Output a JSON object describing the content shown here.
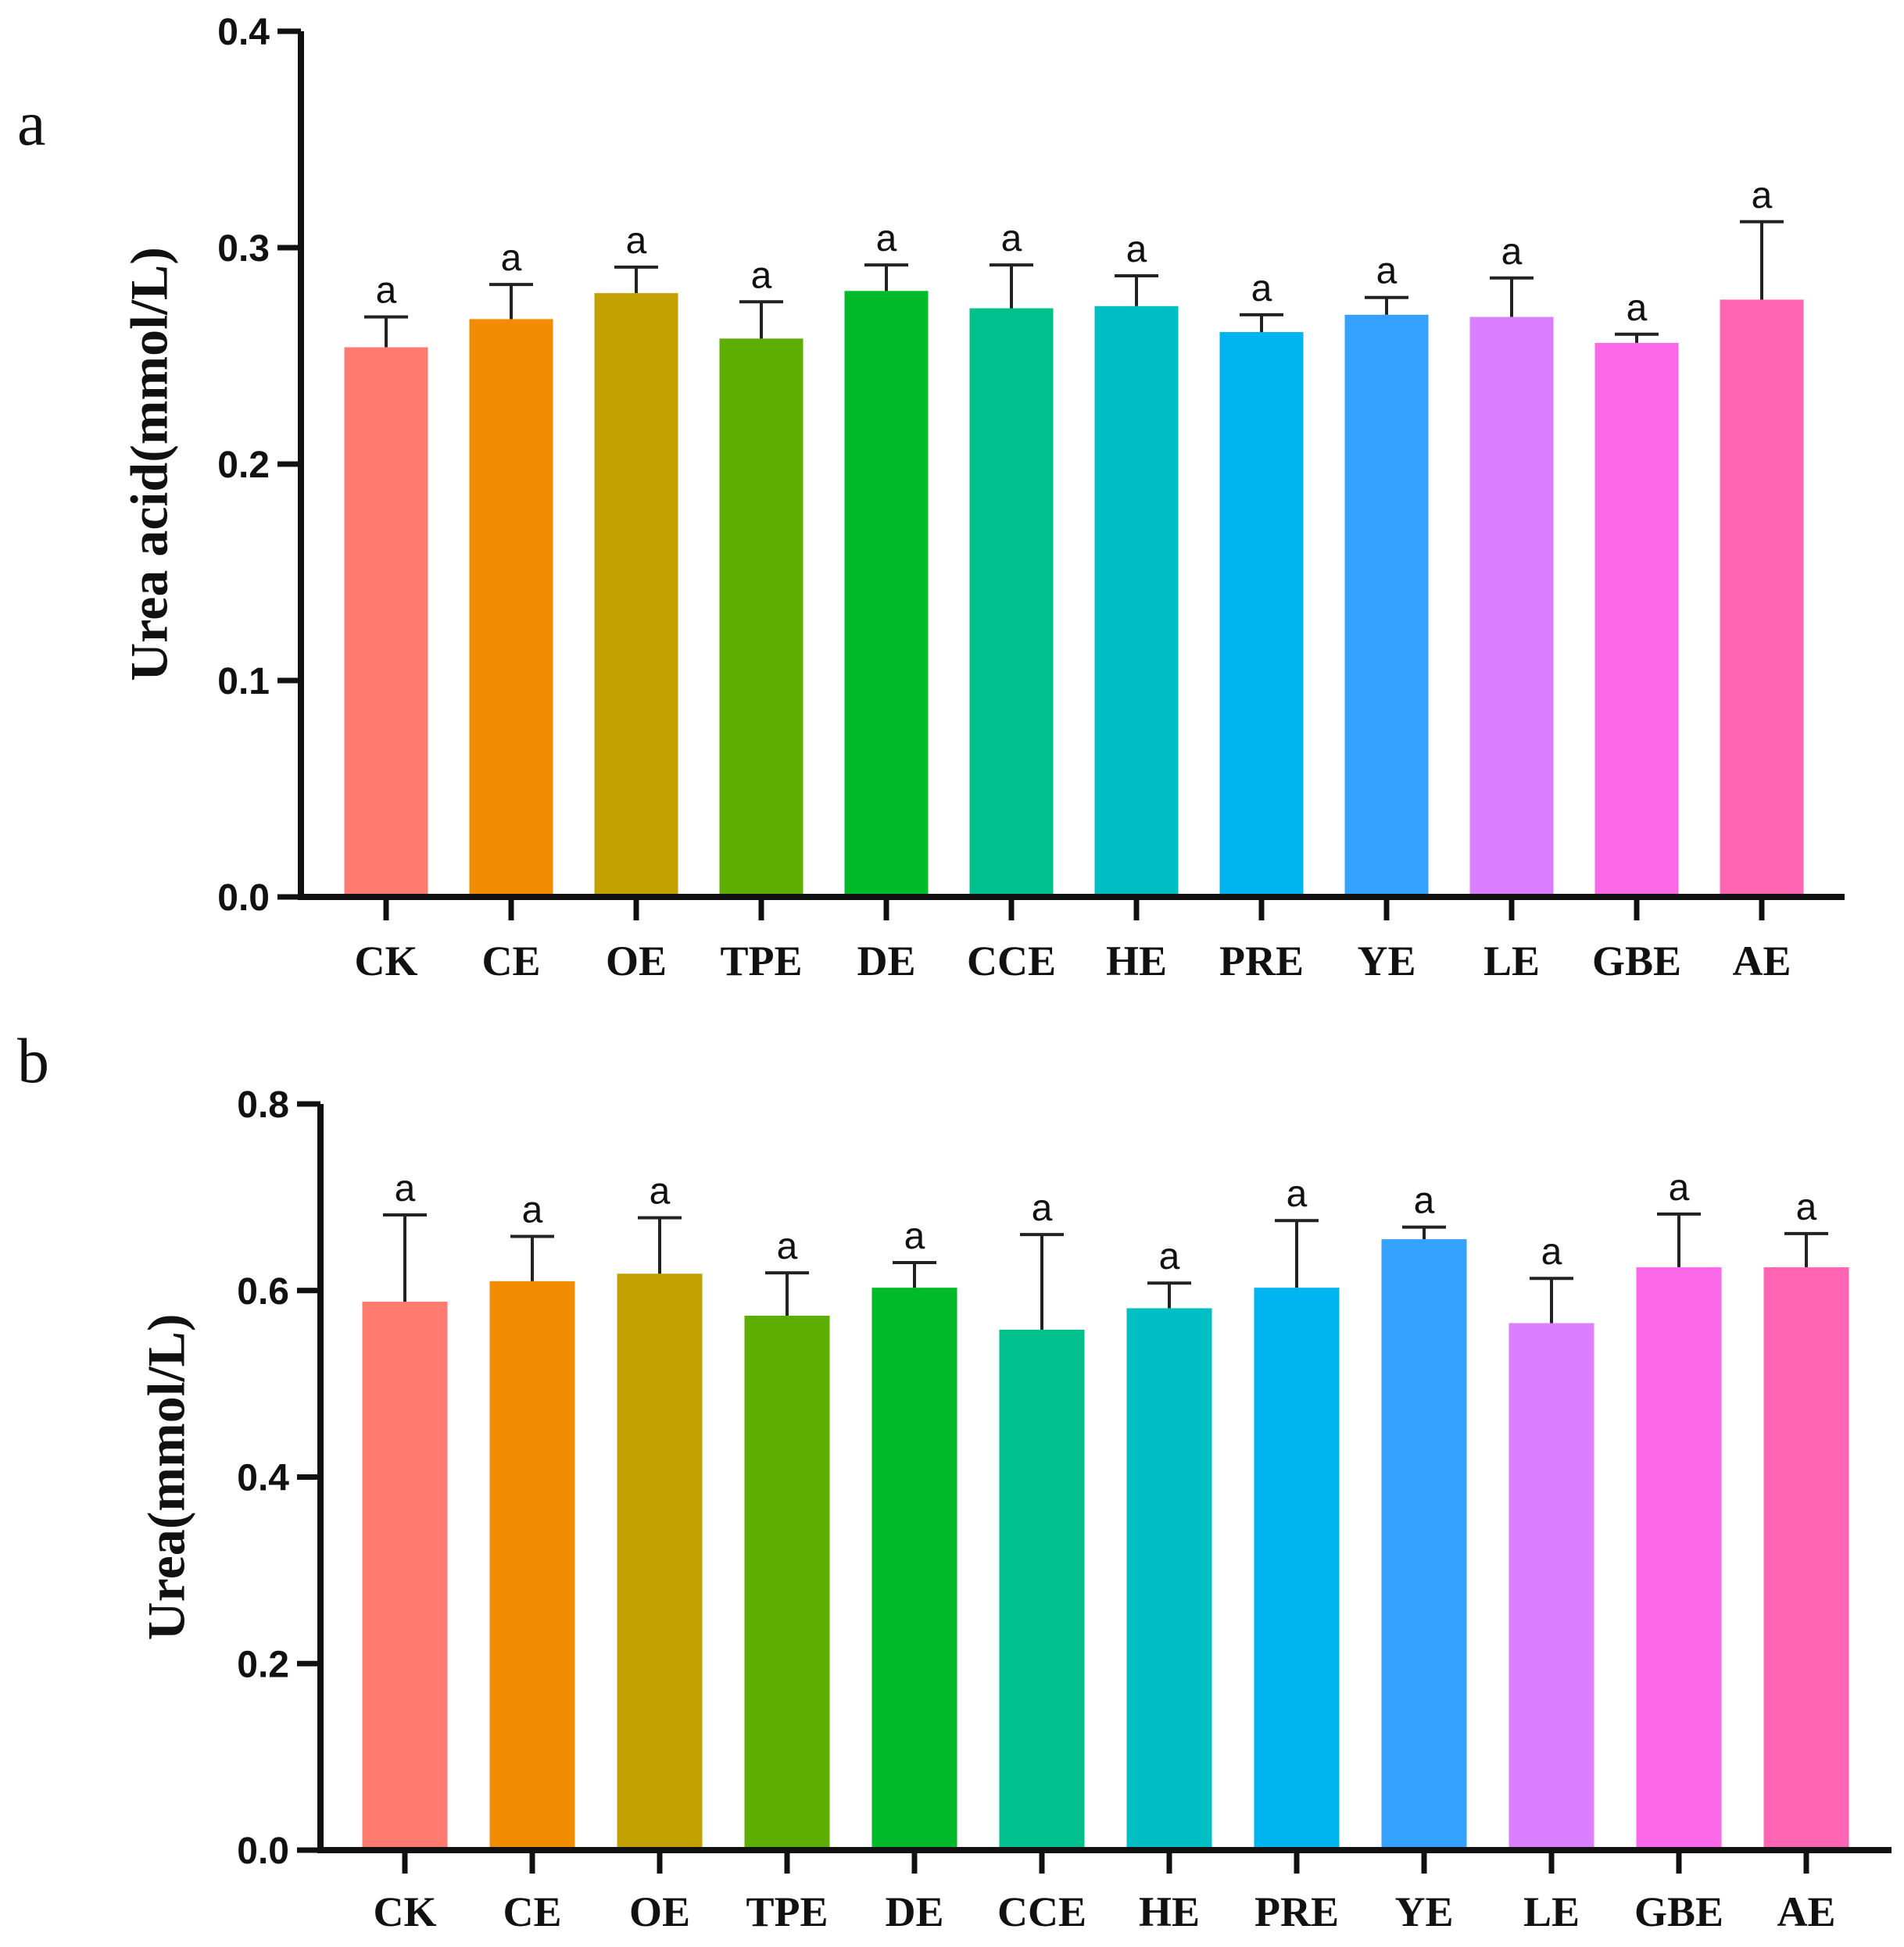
{
  "chart_data": [
    {
      "panel": "a",
      "type": "bar",
      "ylabel": "Urea acid(mmol/L)",
      "xlabel": "",
      "ylim": [
        0,
        0.4
      ],
      "yticks": [
        "0.0",
        "0.1",
        "0.2",
        "0.3",
        "0.4"
      ],
      "ytick_values": [
        0,
        0.1,
        0.2,
        0.3,
        0.4
      ],
      "categories": [
        "CK",
        "CE",
        "OE",
        "TPE",
        "DE",
        "CCE",
        "HE",
        "PRE",
        "YE",
        "LE",
        "GBE",
        "AE"
      ],
      "values": [
        0.254,
        0.267,
        0.279,
        0.258,
        0.28,
        0.272,
        0.273,
        0.261,
        0.269,
        0.268,
        0.256,
        0.276
      ],
      "errors": [
        0.014,
        0.016,
        0.012,
        0.017,
        0.012,
        0.02,
        0.014,
        0.008,
        0.008,
        0.018,
        0.004,
        0.036
      ],
      "significance": [
        "a",
        "a",
        "a",
        "a",
        "a",
        "a",
        "a",
        "a",
        "a",
        "a",
        "a",
        "a"
      ],
      "colors": [
        "#FF7B6F",
        "#F28C00",
        "#C2A000",
        "#5DAE00",
        "#00BA29",
        "#00C08D",
        "#00BFC4",
        "#00B4EF",
        "#36A2FF",
        "#DB7EFF",
        "#FC69E8",
        "#FF65B2"
      ]
    },
    {
      "panel": "b",
      "type": "bar",
      "ylabel": "Urea(mmol/L)",
      "xlabel": "",
      "ylim": [
        0,
        0.8
      ],
      "yticks": [
        "0.0",
        "0.2",
        "0.4",
        "0.6",
        "0.8"
      ],
      "ytick_values": [
        0,
        0.2,
        0.4,
        0.6,
        0.8
      ],
      "categories": [
        "CK",
        "CE",
        "OE",
        "TPE",
        "DE",
        "CCE",
        "HE",
        "PRE",
        "YE",
        "LE",
        "GBE",
        "AE"
      ],
      "values": [
        0.588,
        0.61,
        0.618,
        0.573,
        0.603,
        0.558,
        0.581,
        0.603,
        0.655,
        0.565,
        0.625,
        0.625
      ],
      "errors": [
        0.093,
        0.048,
        0.06,
        0.046,
        0.027,
        0.102,
        0.027,
        0.072,
        0.013,
        0.048,
        0.057,
        0.036
      ],
      "significance": [
        "a",
        "a",
        "a",
        "a",
        "a",
        "a",
        "a",
        "a",
        "a",
        "a",
        "a",
        "a"
      ],
      "colors": [
        "#FF7B6F",
        "#F28C00",
        "#C2A000",
        "#5DAE00",
        "#00BA29",
        "#00C08D",
        "#00BFC4",
        "#00B4EF",
        "#36A2FF",
        "#DB7EFF",
        "#FC69E8",
        "#FF65B2"
      ]
    }
  ]
}
